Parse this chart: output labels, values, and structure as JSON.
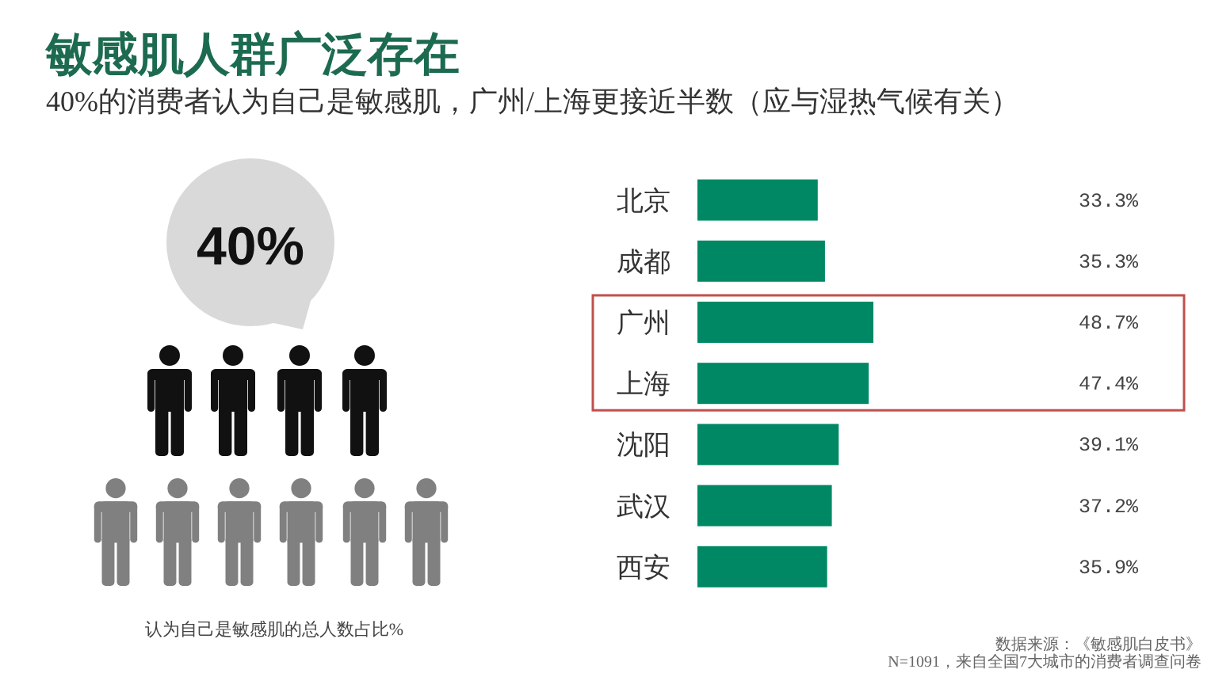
{
  "chart_data": {
    "type": "bar",
    "orientation": "horizontal",
    "title": "敏感肌人群广泛存在",
    "subtitle": "40%的消费者认为自己是敏感肌，广州/上海更接近半数（应与湿热气候有关）",
    "categories": [
      "北京",
      "成都",
      "广州",
      "上海",
      "沈阳",
      "武汉",
      "西安"
    ],
    "values": [
      33.3,
      35.3,
      48.7,
      47.4,
      39.1,
      37.2,
      35.9
    ],
    "value_labels": [
      "33.3%",
      "35.3%",
      "48.7%",
      "47.4%",
      "39.1%",
      "37.2%",
      "35.9%"
    ],
    "color": "#008865",
    "annotations": [
      "40%",
      "认为自己是敏感肌的总人数占比%",
      "数据来源：《敏感肌白皮书》",
      "N=1091，来自全国7大城市的消费者调查问卷"
    ]
  }
}
